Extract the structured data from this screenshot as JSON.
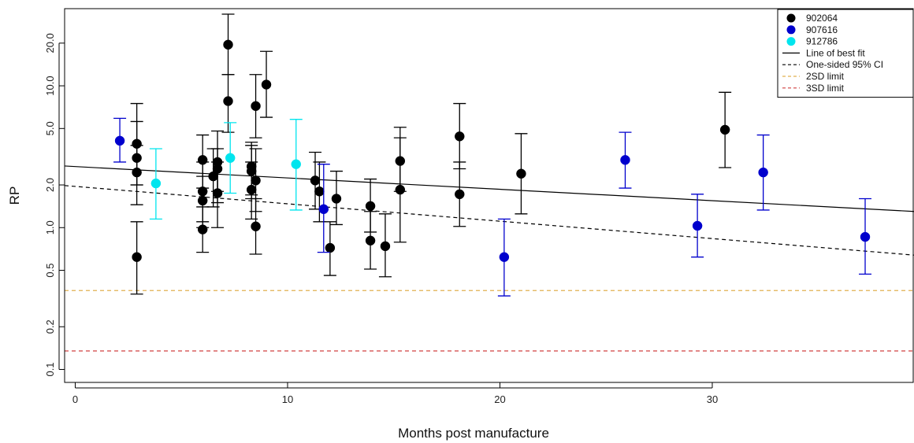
{
  "chart_data": {
    "type": "scatter",
    "xlabel": "Months post manufacture",
    "ylabel": "RP",
    "y_scale": "log",
    "xlim": [
      -0.5,
      39.5
    ],
    "ylim": [
      0.081,
      35
    ],
    "x_ticks": [
      0,
      10,
      20,
      30
    ],
    "y_ticks": [
      0.1,
      0.2,
      0.5,
      1.0,
      2.0,
      5.0,
      10.0,
      20.0
    ],
    "y_tick_labels": [
      "0.1",
      "0.2",
      "0.5",
      "1.0",
      "2.0",
      "5.0",
      "10.0",
      "20.0"
    ],
    "legend_position": "top-right",
    "series": [
      {
        "name": "902064",
        "color": "#000000",
        "points": [
          {
            "x": 2.9,
            "y": 3.9,
            "lo": 2.0,
            "hi": 5.6
          },
          {
            "x": 2.9,
            "y": 3.1,
            "lo": 2.0,
            "hi": 7.5
          },
          {
            "x": 2.9,
            "y": 2.45,
            "lo": 1.45,
            "hi": 3.8
          },
          {
            "x": 2.9,
            "y": 0.62,
            "lo": 0.34,
            "hi": 1.1
          },
          {
            "x": 6.0,
            "y": 3.0,
            "lo": 1.9,
            "hi": 4.5
          },
          {
            "x": 6.0,
            "y": 1.8,
            "lo": 1.1,
            "hi": 2.9
          },
          {
            "x": 6.0,
            "y": 1.55,
            "lo": 1.0,
            "hi": 2.3
          },
          {
            "x": 6.0,
            "y": 0.97,
            "lo": 0.67,
            "hi": 1.4
          },
          {
            "x": 6.5,
            "y": 2.3,
            "lo": 1.4,
            "hi": 3.6
          },
          {
            "x": 6.7,
            "y": 2.9,
            "lo": 1.8,
            "hi": 4.8
          },
          {
            "x": 6.7,
            "y": 2.6,
            "lo": 1.5,
            "hi": 3.6
          },
          {
            "x": 6.7,
            "y": 1.75,
            "lo": 1.0,
            "hi": 2.9
          },
          {
            "x": 7.2,
            "y": 19.5,
            "lo": 12.0,
            "hi": 32.0
          },
          {
            "x": 7.2,
            "y": 7.8,
            "lo": 4.7,
            "hi": 12.0
          },
          {
            "x": 8.3,
            "y": 2.7,
            "lo": 1.7,
            "hi": 4.0
          },
          {
            "x": 8.3,
            "y": 2.5,
            "lo": 1.6,
            "hi": 3.8
          },
          {
            "x": 8.3,
            "y": 1.85,
            "lo": 1.15,
            "hi": 2.9
          },
          {
            "x": 8.5,
            "y": 7.2,
            "lo": 4.3,
            "hi": 12.0
          },
          {
            "x": 8.5,
            "y": 2.15,
            "lo": 1.3,
            "hi": 3.6
          },
          {
            "x": 8.5,
            "y": 1.02,
            "lo": 0.65,
            "hi": 1.6
          },
          {
            "x": 9.0,
            "y": 10.2,
            "lo": 6.0,
            "hi": 17.5
          },
          {
            "x": 11.3,
            "y": 2.15,
            "lo": 1.35,
            "hi": 3.4
          },
          {
            "x": 11.5,
            "y": 1.8,
            "lo": 1.1,
            "hi": 2.9
          },
          {
            "x": 12.0,
            "y": 0.72,
            "lo": 0.46,
            "hi": 1.1
          },
          {
            "x": 12.3,
            "y": 1.6,
            "lo": 1.05,
            "hi": 2.5
          },
          {
            "x": 13.9,
            "y": 1.42,
            "lo": 0.93,
            "hi": 2.2
          },
          {
            "x": 13.9,
            "y": 0.81,
            "lo": 0.51,
            "hi": 1.3
          },
          {
            "x": 14.6,
            "y": 0.74,
            "lo": 0.45,
            "hi": 1.25
          },
          {
            "x": 15.3,
            "y": 2.95,
            "lo": 1.8,
            "hi": 5.1
          },
          {
            "x": 15.3,
            "y": 1.85,
            "lo": 0.79,
            "hi": 4.3
          },
          {
            "x": 18.1,
            "y": 4.4,
            "lo": 2.6,
            "hi": 7.5
          },
          {
            "x": 18.1,
            "y": 1.72,
            "lo": 1.02,
            "hi": 2.9
          },
          {
            "x": 21.0,
            "y": 2.4,
            "lo": 1.25,
            "hi": 4.6
          },
          {
            "x": 30.6,
            "y": 4.9,
            "lo": 2.65,
            "hi": 9.0
          }
        ]
      },
      {
        "name": "907616",
        "color": "#0000cd",
        "points": [
          {
            "x": 2.1,
            "y": 4.1,
            "lo": 2.9,
            "hi": 5.9
          },
          {
            "x": 11.7,
            "y": 1.35,
            "lo": 0.67,
            "hi": 2.8
          },
          {
            "x": 20.2,
            "y": 0.62,
            "lo": 0.33,
            "hi": 1.15
          },
          {
            "x": 25.9,
            "y": 3.0,
            "lo": 1.9,
            "hi": 4.7
          },
          {
            "x": 29.3,
            "y": 1.03,
            "lo": 0.62,
            "hi": 1.72
          },
          {
            "x": 32.4,
            "y": 2.45,
            "lo": 1.33,
            "hi": 4.5
          },
          {
            "x": 37.2,
            "y": 0.86,
            "lo": 0.47,
            "hi": 1.6
          }
        ]
      },
      {
        "name": "912786",
        "color": "#00e5ee",
        "points": [
          {
            "x": 3.8,
            "y": 2.05,
            "lo": 1.15,
            "hi": 3.6
          },
          {
            "x": 7.3,
            "y": 3.1,
            "lo": 1.75,
            "hi": 5.5
          },
          {
            "x": 10.4,
            "y": 2.8,
            "lo": 1.33,
            "hi": 5.8
          }
        ]
      }
    ],
    "lines": [
      {
        "name": "Line of best fit",
        "style": "solid",
        "color": "#000000",
        "x": [
          -0.5,
          39.5
        ],
        "y": [
          2.72,
          1.3
        ]
      },
      {
        "name": "One-sided 95% CI",
        "style": "dashed",
        "color": "#000000",
        "x": [
          -0.5,
          39.5
        ],
        "y": [
          1.98,
          0.64
        ]
      },
      {
        "name": "2SD limit",
        "style": "dashed",
        "color": "#e0b050",
        "x": [
          -0.5,
          39.5
        ],
        "y": [
          0.36,
          0.36
        ]
      },
      {
        "name": "3SD limit",
        "style": "dashed",
        "color": "#d04040",
        "x": [
          -0.5,
          39.5
        ],
        "y": [
          0.135,
          0.135
        ]
      }
    ],
    "legend": [
      {
        "label": "902064",
        "kind": "point",
        "color": "#000000"
      },
      {
        "label": "907616",
        "kind": "point",
        "color": "#0000cd"
      },
      {
        "label": "912786",
        "kind": "point",
        "color": "#00e5ee"
      },
      {
        "label": "Line of best fit",
        "kind": "line",
        "style": "solid",
        "color": "#000000"
      },
      {
        "label": "One-sided 95% CI",
        "kind": "line",
        "style": "dashed",
        "color": "#000000"
      },
      {
        "label": "2SD limit",
        "kind": "line",
        "style": "dashed",
        "color": "#e0b050"
      },
      {
        "label": "3SD limit",
        "kind": "line",
        "style": "dashed",
        "color": "#d04040"
      }
    ]
  }
}
